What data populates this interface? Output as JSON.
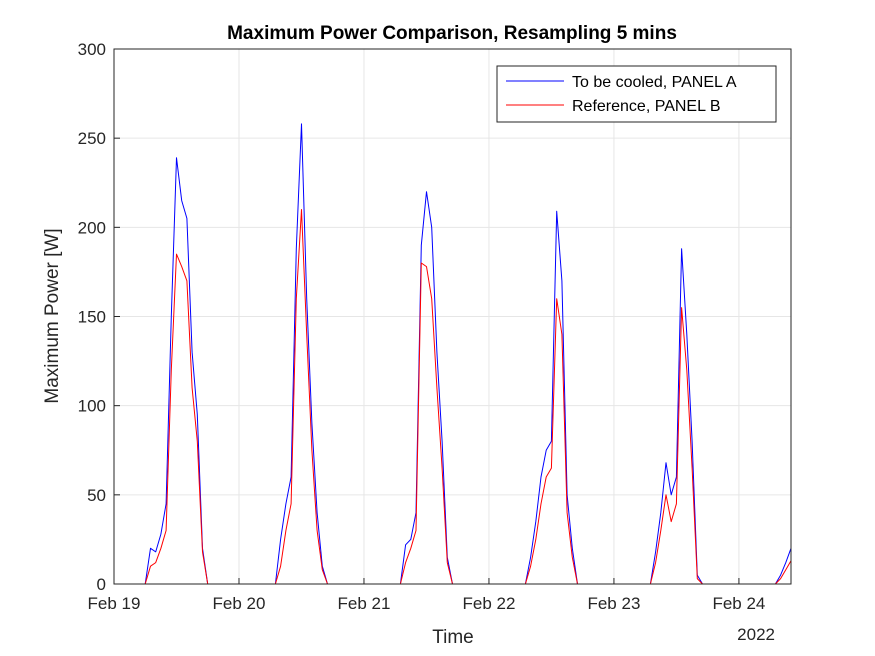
{
  "chart_data": {
    "type": "line",
    "title": "Maximum Power Comparison, Resampling 5 mins",
    "xlabel": "Time",
    "ylabel": "Maximum Power [W]",
    "x_secondary_label": "2022",
    "xlim": [
      "Feb 19 00:00",
      "Feb 24 10:00"
    ],
    "ylim": [
      0,
      300
    ],
    "x_ticks": [
      "Feb 19",
      "Feb 20",
      "Feb 21",
      "Feb 22",
      "Feb 23",
      "Feb 24"
    ],
    "y_ticks": [
      0,
      50,
      100,
      150,
      200,
      250,
      300
    ],
    "grid": true,
    "legend_position": "top-right",
    "series": [
      {
        "name": "To be cooled, PANEL A",
        "color": "#0000ff",
        "x": [
          "Feb 19 06:00",
          "Feb 19 07:00",
          "Feb 19 08:00",
          "Feb 19 09:00",
          "Feb 19 10:00",
          "Feb 19 11:00",
          "Feb 19 12:00",
          "Feb 19 13:00",
          "Feb 19 14:00",
          "Feb 19 15:00",
          "Feb 19 16:00",
          "Feb 19 17:00",
          "Feb 19 18:00",
          "Feb 20 07:00",
          "Feb 20 08:00",
          "Feb 20 09:00",
          "Feb 20 10:00",
          "Feb 20 11:00",
          "Feb 20 12:00",
          "Feb 20 13:00",
          "Feb 20 14:00",
          "Feb 20 15:00",
          "Feb 20 16:00",
          "Feb 20 17:00",
          "Feb 20 18:00",
          "Feb 21 07:00",
          "Feb 21 08:00",
          "Feb 21 09:00",
          "Feb 21 10:00",
          "Feb 21 11:00",
          "Feb 21 12:00",
          "Feb 21 13:00",
          "Feb 21 14:00",
          "Feb 21 15:00",
          "Feb 21 16:00",
          "Feb 21 17:00",
          "Feb 21 18:00",
          "Feb 22 07:00",
          "Feb 22 08:00",
          "Feb 22 09:00",
          "Feb 22 10:00",
          "Feb 22 11:00",
          "Feb 22 12:00",
          "Feb 22 13:00",
          "Feb 22 14:00",
          "Feb 22 15:00",
          "Feb 22 16:00",
          "Feb 22 17:00",
          "Feb 22 18:00",
          "Feb 23 07:00",
          "Feb 23 08:00",
          "Feb 23 09:00",
          "Feb 23 10:00",
          "Feb 23 11:00",
          "Feb 23 12:00",
          "Feb 23 13:00",
          "Feb 23 14:00",
          "Feb 23 15:00",
          "Feb 23 16:00",
          "Feb 23 17:00",
          "Feb 23 18:00",
          "Feb 24 07:00",
          "Feb 24 08:00",
          "Feb 24 09:00",
          "Feb 24 10:00"
        ],
        "values": [
          0,
          20,
          18,
          28,
          45,
          150,
          239,
          215,
          205,
          130,
          95,
          20,
          0,
          0,
          25,
          45,
          60,
          188,
          258,
          160,
          90,
          40,
          10,
          0,
          0,
          0,
          22,
          25,
          40,
          190,
          220,
          200,
          130,
          80,
          15,
          0,
          0,
          0,
          15,
          35,
          60,
          75,
          80,
          209,
          170,
          50,
          20,
          0,
          0,
          0,
          18,
          40,
          68,
          50,
          60,
          188,
          140,
          80,
          5,
          0,
          0,
          0,
          5,
          12,
          20
        ]
      },
      {
        "name": "Reference, PANEL B",
        "color": "#ff0000",
        "x": [
          "Feb 19 06:00",
          "Feb 19 07:00",
          "Feb 19 08:00",
          "Feb 19 09:00",
          "Feb 19 10:00",
          "Feb 19 11:00",
          "Feb 19 12:00",
          "Feb 19 13:00",
          "Feb 19 14:00",
          "Feb 19 15:00",
          "Feb 19 16:00",
          "Feb 19 17:00",
          "Feb 19 18:00",
          "Feb 20 07:00",
          "Feb 20 08:00",
          "Feb 20 09:00",
          "Feb 20 10:00",
          "Feb 20 11:00",
          "Feb 20 12:00",
          "Feb 20 13:00",
          "Feb 20 14:00",
          "Feb 20 15:00",
          "Feb 20 16:00",
          "Feb 20 17:00",
          "Feb 20 18:00",
          "Feb 21 07:00",
          "Feb 21 08:00",
          "Feb 21 09:00",
          "Feb 21 10:00",
          "Feb 21 11:00",
          "Feb 21 12:00",
          "Feb 21 13:00",
          "Feb 21 14:00",
          "Feb 21 15:00",
          "Feb 21 16:00",
          "Feb 21 17:00",
          "Feb 21 18:00",
          "Feb 22 07:00",
          "Feb 22 08:00",
          "Feb 22 09:00",
          "Feb 22 10:00",
          "Feb 22 11:00",
          "Feb 22 12:00",
          "Feb 22 13:00",
          "Feb 22 14:00",
          "Feb 22 15:00",
          "Feb 22 16:00",
          "Feb 22 17:00",
          "Feb 22 18:00",
          "Feb 23 07:00",
          "Feb 23 08:00",
          "Feb 23 09:00",
          "Feb 23 10:00",
          "Feb 23 11:00",
          "Feb 23 12:00",
          "Feb 23 13:00",
          "Feb 23 14:00",
          "Feb 23 15:00",
          "Feb 23 16:00",
          "Feb 23 17:00",
          "Feb 23 18:00",
          "Feb 24 07:00",
          "Feb 24 08:00",
          "Feb 24 09:00",
          "Feb 24 10:00"
        ],
        "values": [
          0,
          10,
          12,
          20,
          30,
          120,
          185,
          178,
          170,
          110,
          80,
          18,
          0,
          0,
          10,
          30,
          45,
          160,
          210,
          140,
          75,
          30,
          8,
          0,
          0,
          0,
          12,
          20,
          30,
          180,
          178,
          160,
          110,
          65,
          12,
          0,
          0,
          0,
          10,
          25,
          45,
          60,
          65,
          160,
          140,
          40,
          15,
          0,
          0,
          0,
          12,
          30,
          50,
          35,
          45,
          155,
          120,
          65,
          3,
          0,
          0,
          0,
          3,
          8,
          13
        ]
      }
    ]
  }
}
